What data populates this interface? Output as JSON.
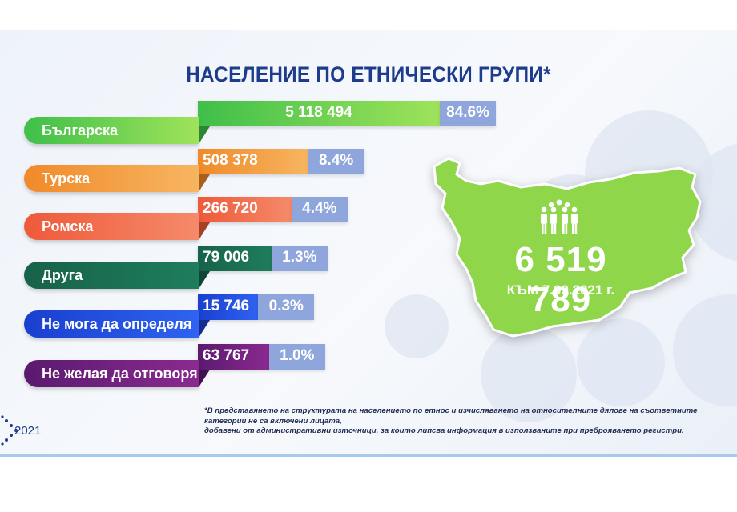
{
  "title": "НАСЕЛЕНИЕ ПО ЕТНИЧЕСКИ ГРУПИ*",
  "total": {
    "value": "6 519 789",
    "date_label": "КЪМ 7.09.2021 г."
  },
  "footnote": {
    "line1": "*В представянето на структурата на населението по етнос и изчисляването на относителните дялове на съответните категории не са включени лицата,",
    "line2": "добавени от административни източници, за които липсва информация в използваните при преброяването регистри."
  },
  "logo": {
    "year": "2021"
  },
  "colors": {
    "title": "#1e3c8c",
    "map": "#8fd64a",
    "percent_box": "#8fa6dc",
    "panel": "#eef3fa"
  },
  "chart_data": {
    "type": "bar",
    "orientation": "horizontal",
    "title": "НАСЕЛЕНИЕ ПО ЕТНИЧЕСКИ ГРУПИ*",
    "categories": [
      "Българска",
      "Турска",
      "Ромска",
      "Друга",
      "Не мога да определя",
      "Не желая да отговоря"
    ],
    "values": [
      5118494,
      508378,
      266720,
      79006,
      15746,
      63767
    ],
    "value_labels": [
      "5 118 494",
      "508 378",
      "266 720",
      "79 006",
      "15 746",
      "63 767"
    ],
    "percents": [
      84.6,
      8.4,
      4.4,
      1.3,
      0.3,
      1.0
    ],
    "percent_labels": [
      "84.6%",
      "8.4%",
      "4.4%",
      "1.3%",
      "0.3%",
      "1.0%"
    ],
    "colors": [
      [
        "#3fbf4a",
        "#9fe35a"
      ],
      [
        "#f08a2a",
        "#f7b560"
      ],
      [
        "#ee5a3a",
        "#f58a6a"
      ],
      [
        "#17624a",
        "#1e7d5c"
      ],
      [
        "#1a3fcf",
        "#2f63f0"
      ],
      [
        "#5a1a6e",
        "#8a2a90"
      ]
    ]
  }
}
